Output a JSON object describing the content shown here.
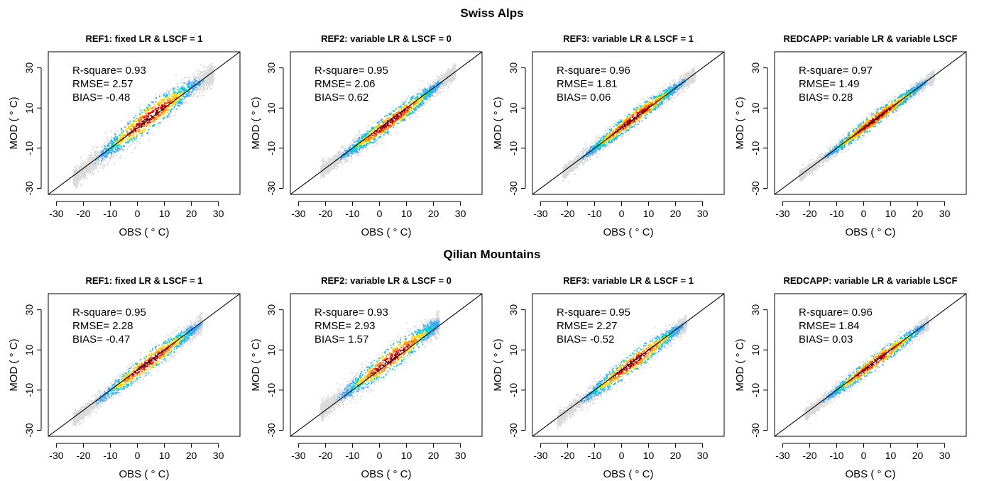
{
  "rows": [
    {
      "section_title": "Swiss Alps",
      "panels": [
        {
          "title": "REF1: fixed LR & LSCF = 1",
          "stats": [
            "R-square= 0.93",
            "RMSE= 2.57",
            "BIAS= -0.48"
          ]
        },
        {
          "title": "REF2: variable LR & LSCF = 0",
          "stats": [
            "R-square= 0.95",
            "RMSE= 2.06",
            "BIAS= 0.62"
          ]
        },
        {
          "title": "REF3: variable LR & LSCF = 1",
          "stats": [
            "R-square= 0.96",
            "RMSE= 1.81",
            "BIAS= 0.06"
          ]
        },
        {
          "title": "REDCAPP: variable LR & variable LSCF",
          "stats": [
            "R-square= 0.97",
            "RMSE= 1.49",
            "BIAS= 0.28"
          ]
        }
      ]
    },
    {
      "section_title": "Qilian Mountains",
      "panels": [
        {
          "title": "REF1: fixed LR & LSCF = 1",
          "stats": [
            "R-square= 0.95",
            "RMSE= 2.28",
            "BIAS= -0.47"
          ]
        },
        {
          "title": "REF2: variable LR & LSCF = 0",
          "stats": [
            "R-square= 0.93",
            "RMSE= 2.93",
            "BIAS= 1.57"
          ]
        },
        {
          "title": "REF3: variable LR & LSCF = 1",
          "stats": [
            "R-square= 0.95",
            "RMSE= 2.27",
            "BIAS= -0.52"
          ]
        },
        {
          "title": "REDCAPP: variable LR & variable LSCF",
          "stats": [
            "R-square= 0.96",
            "RMSE= 1.84",
            "BIAS= 0.03"
          ]
        }
      ]
    }
  ],
  "chart_data": {
    "type": "scatter",
    "xlabel": "OBS ( ° C)",
    "ylabel": "MOD ( ° C)",
    "xticks": [
      -30,
      -20,
      -10,
      0,
      10,
      20,
      30
    ],
    "yticks": [
      -30,
      -10,
      10,
      30
    ],
    "xlim": [
      -33,
      38
    ],
    "ylim": [
      -33,
      38
    ],
    "reference_line": "1:1",
    "colors": {
      "density_scale": [
        "#d9d9d9",
        "#3fa9f5",
        "#00d0d0",
        "#ffd400",
        "#ff7a00",
        "#d40000",
        "#8b0000"
      ],
      "line": "#000000"
    }
  }
}
